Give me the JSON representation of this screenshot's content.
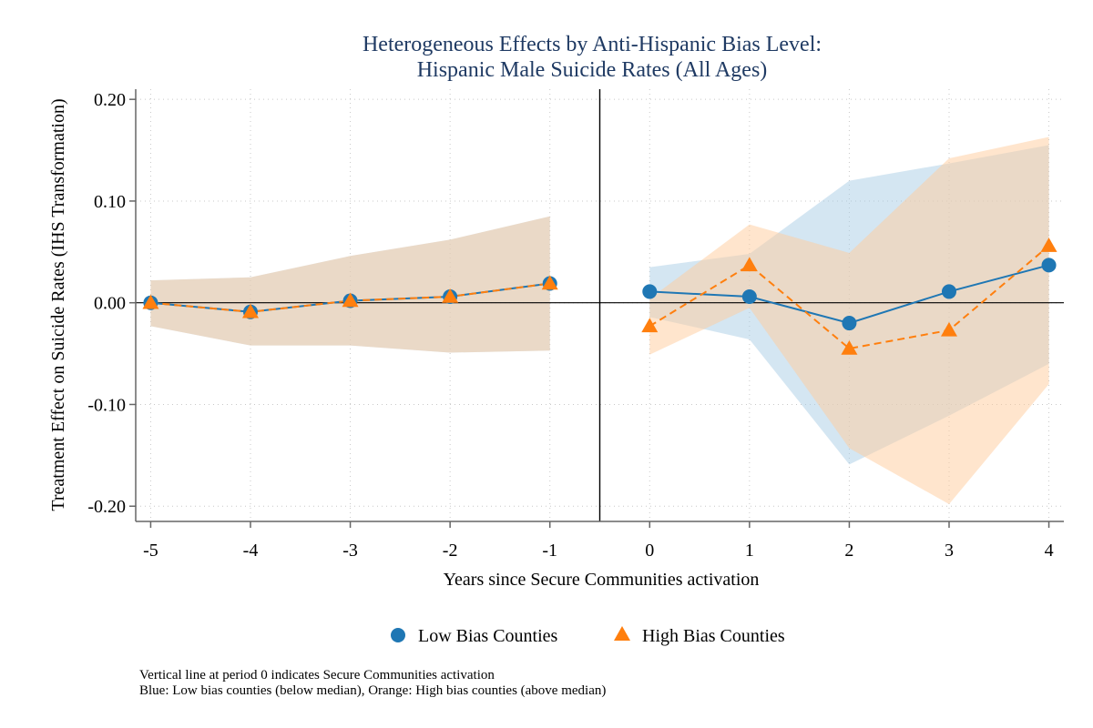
{
  "chart_data": {
    "type": "line",
    "title": "Heterogeneous Effects by Anti-Hispanic Bias Level:",
    "subtitle": "Hispanic Male Suicide Rates (All Ages)",
    "xlabel": "Years since Secure Communities activation",
    "ylabel": "Treatment Effect on Suicide Rates (IHS Transformation)",
    "x": [
      -5,
      -4,
      -3,
      -2,
      -1,
      0,
      1,
      2,
      3,
      4
    ],
    "xticks": [
      "-5",
      "-4",
      "-3",
      "-2",
      "-1",
      "0",
      "1",
      "2",
      "3",
      "4"
    ],
    "yticks": [
      0.2,
      0.1,
      0.0,
      -0.1,
      -0.2
    ],
    "ytick_labels": [
      "0.20",
      "0.10",
      "0.00",
      "-0.10",
      "-0.20"
    ],
    "ylim": [
      -0.215,
      0.21
    ],
    "xlim": [
      -5.15,
      4.15
    ],
    "grid": true,
    "vertical_line_x": -0.5,
    "horizontal_line_y": 0,
    "legend_position": "bottom",
    "series": [
      {
        "name": "Low Bias Counties",
        "color": "#1f77b4",
        "marker": "circle",
        "line_style": "solid",
        "values": [
          0.0,
          -0.009,
          0.002,
          0.006,
          0.019,
          0.011,
          0.006,
          -0.02,
          0.011,
          0.037
        ],
        "ci_lower": [
          -0.023,
          -0.042,
          -0.042,
          -0.049,
          -0.047,
          -0.014,
          -0.036,
          -0.159,
          -0.111,
          -0.06
        ],
        "ci_upper": [
          0.022,
          0.025,
          0.046,
          0.062,
          0.085,
          0.035,
          0.048,
          0.12,
          0.137,
          0.155
        ],
        "band_color": "#aacde6"
      },
      {
        "name": "High Bias Counties",
        "color": "#ff7f0e",
        "marker": "triangle",
        "line_style": "dashed",
        "values": [
          0.0,
          -0.009,
          0.002,
          0.006,
          0.019,
          -0.023,
          0.037,
          -0.045,
          -0.027,
          0.056
        ],
        "ci_lower": [
          -0.023,
          -0.042,
          -0.042,
          -0.049,
          -0.047,
          -0.051,
          -0.005,
          -0.143,
          -0.198,
          -0.08
        ],
        "ci_upper": [
          0.022,
          0.025,
          0.046,
          0.062,
          0.085,
          0.004,
          0.077,
          0.049,
          0.142,
          0.163
        ],
        "band_color": "#ffcc9c"
      }
    ],
    "notes": [
      "Vertical line at period 0 indicates Secure Communities activation",
      "Blue: Low bias counties (below median), Orange: High bias counties (above median)"
    ]
  }
}
